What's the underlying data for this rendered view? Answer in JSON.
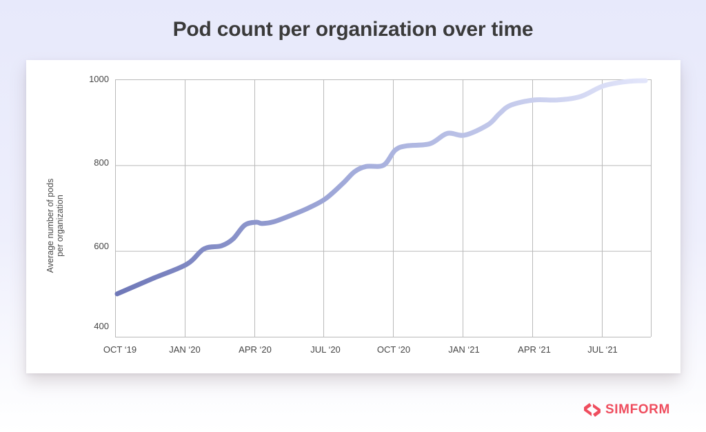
{
  "header": {
    "title": "Pod count per organization over time"
  },
  "brand": {
    "name": "SIMFORM",
    "color": "#ef4d5e",
    "icon": "simform-logo-icon"
  },
  "colors": {
    "line_start": "#6f78b8",
    "line_end": "#e2e5fa",
    "grid": "#b9b9b9",
    "axis_text": "#444444"
  },
  "chart_data": {
    "type": "line",
    "title": "Pod count per organization over time",
    "xlabel": "",
    "ylabel": "Average number of pods per organization",
    "ylabel_lines": [
      "Average number of pods",
      "per organization"
    ],
    "ylim": [
      400,
      1000
    ],
    "yticks": [
      400,
      600,
      800,
      1000
    ],
    "ytick_labels": [
      "400",
      "600",
      "800",
      "1000"
    ],
    "categories": [
      "OCT '19",
      "JAN '20",
      "APR '20",
      "JUL '20",
      "OCT '20",
      "JAN '21",
      "APR '21",
      "JUL '21"
    ],
    "x_tick_labels": [
      "OCT ‘19",
      "JAN ‘20",
      "APR ‘20",
      "JUL ‘20",
      "OCT ‘20",
      "JAN ‘21",
      "APR ‘21",
      "JUL ‘21"
    ],
    "grid": true,
    "legend": null,
    "x_unit": "months since OCT '19",
    "series": [
      {
        "name": "Average number of pods per organization",
        "x": [
          0,
          1.5,
          3,
          3.75,
          4.5,
          5,
          5.5,
          6,
          6.25,
          6.75,
          7.5,
          8.25,
          9,
          9.75,
          10.25,
          10.75,
          11.5,
          12,
          12.5,
          13.5,
          14.25,
          15,
          16,
          16.5,
          17,
          18,
          19,
          20,
          21,
          22,
          22.8
        ],
        "values": [
          500,
          535,
          569,
          605,
          612,
          628,
          660,
          667,
          664,
          668,
          683,
          700,
          722,
          758,
          785,
          797,
          800,
          835,
          845,
          850,
          874,
          870,
          894,
          920,
          940,
          952,
          952,
          960,
          985,
          995,
          997
        ]
      }
    ]
  }
}
